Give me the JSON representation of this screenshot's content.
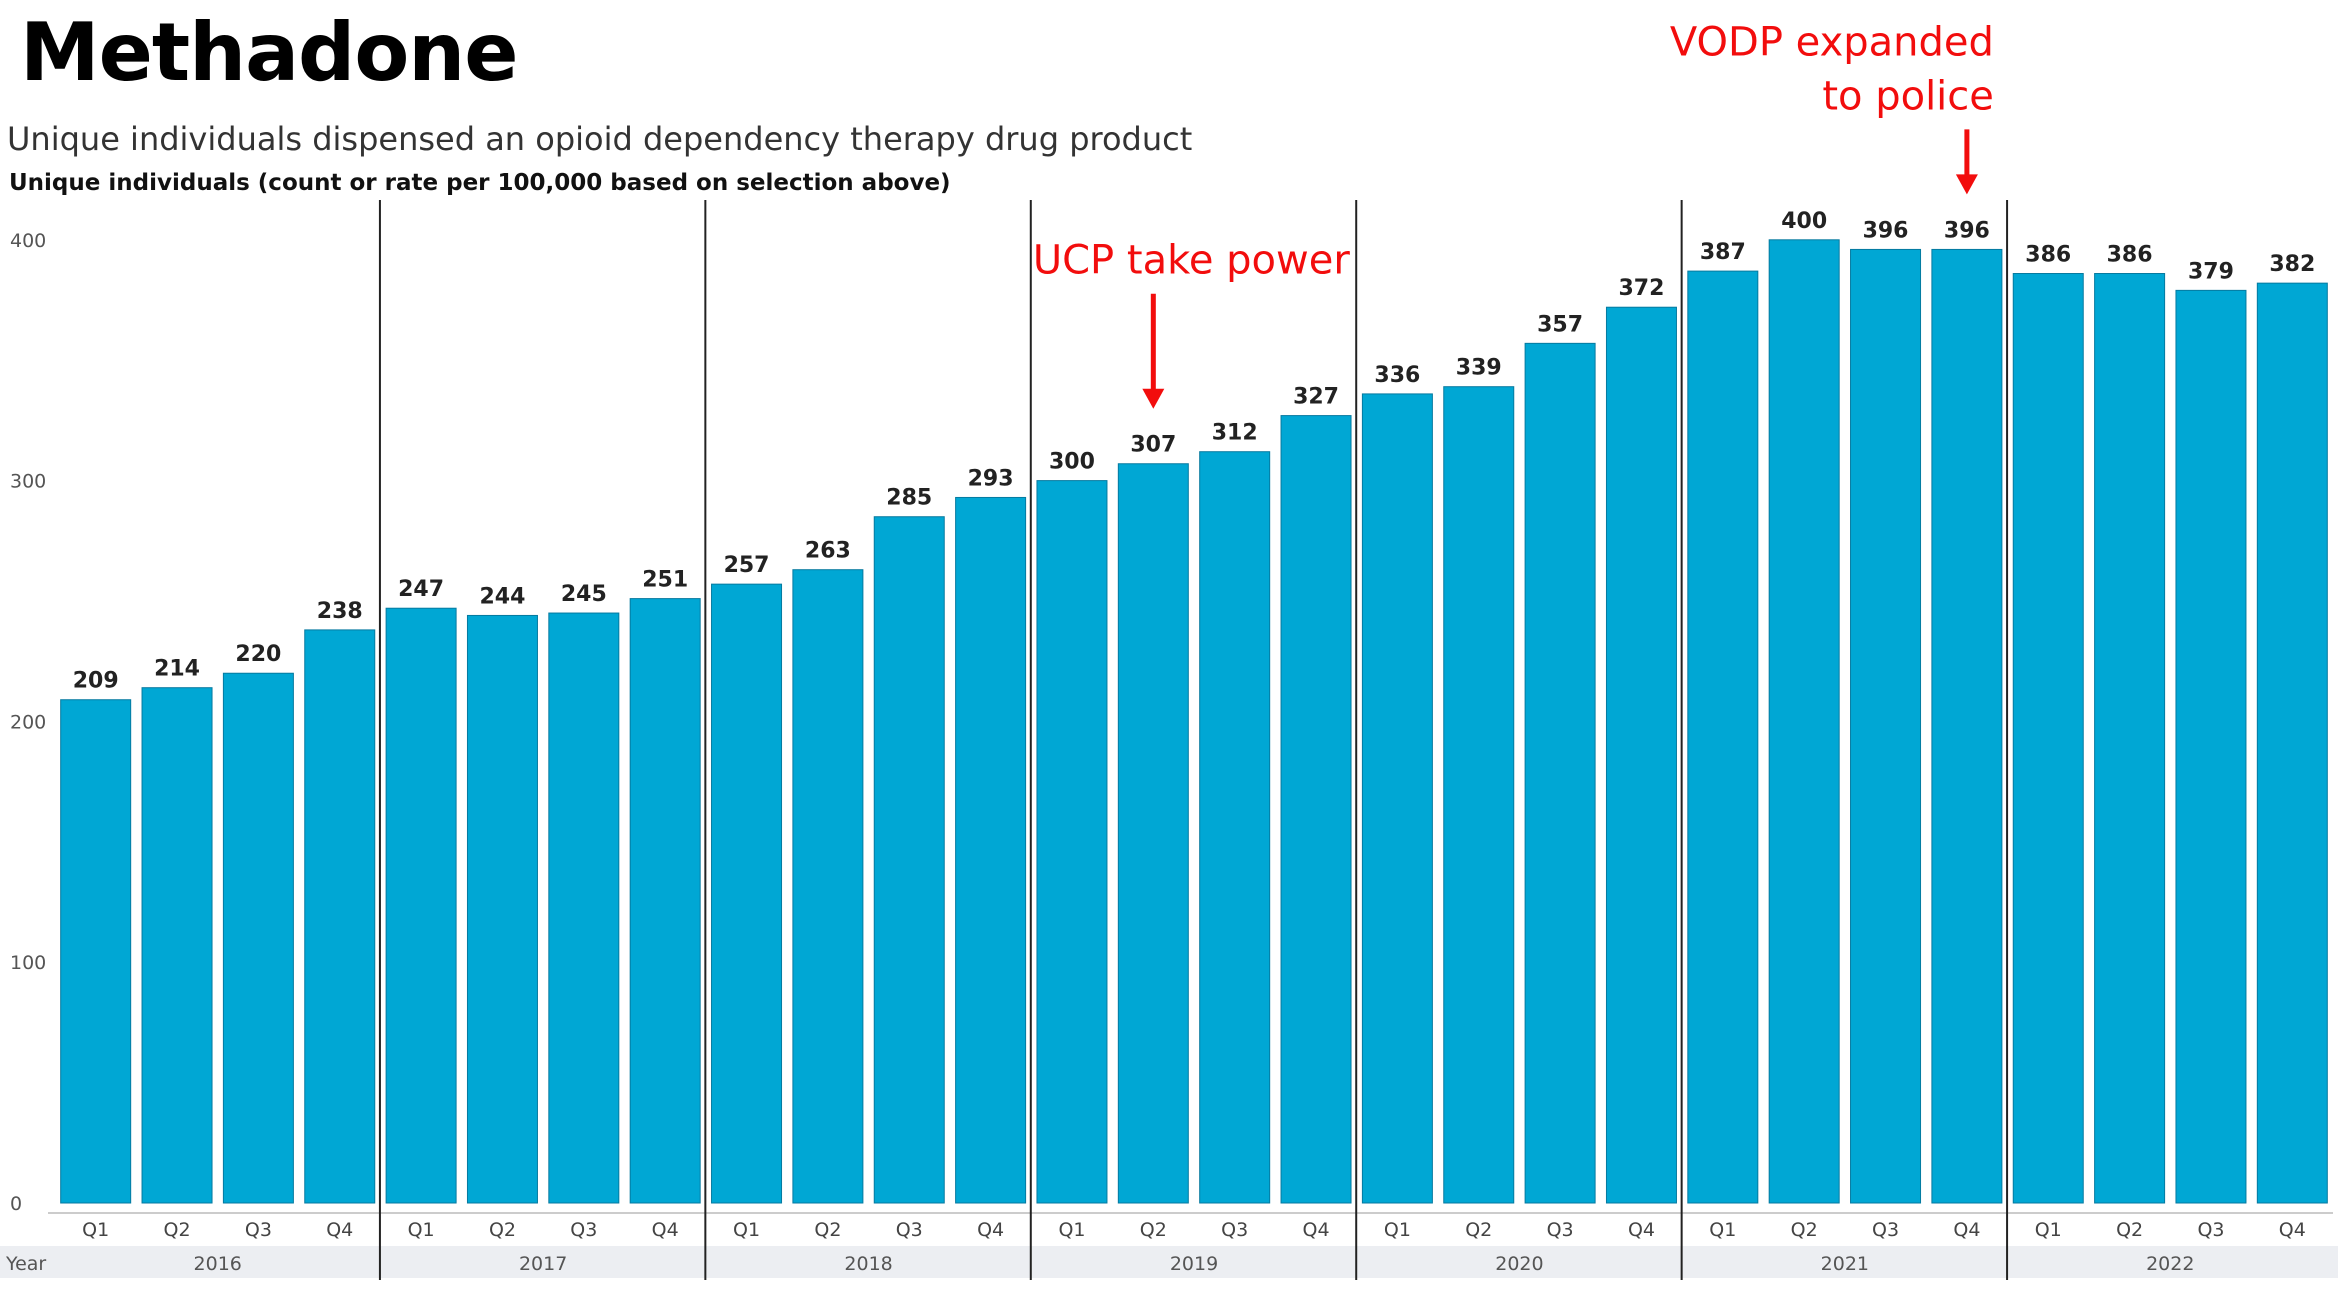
{
  "header": {
    "title": "Methadone",
    "subtitle": "Unique individuals dispensed an opioid dependency therapy drug product",
    "axis_title": "Unique individuals (count or rate per 100,000 based on selection above)"
  },
  "colors": {
    "bar": "#00a7d4",
    "annotation": "#f20d0d",
    "divider": "#222222",
    "footer_band": "#eceef2"
  },
  "annotations": [
    {
      "lines": [
        "UCP take power"
      ],
      "category": "2019 Q2"
    },
    {
      "lines": [
        "VODP expanded",
        "to police"
      ],
      "category": "2021 Q4"
    }
  ],
  "chart_data": {
    "type": "bar",
    "title": "Methadone",
    "xlabel": "Year",
    "ylabel": "Unique individuals (count or rate per 100,000 based on selection above)",
    "ylim": [
      0,
      420
    ],
    "yticks": [
      0,
      100,
      200,
      300,
      400
    ],
    "grid": false,
    "years": [
      "2016",
      "2017",
      "2018",
      "2019",
      "2020",
      "2021",
      "2022"
    ],
    "quarters": [
      "Q1",
      "Q2",
      "Q3",
      "Q4"
    ],
    "categories": [
      "2016 Q1",
      "2016 Q2",
      "2016 Q3",
      "2016 Q4",
      "2017 Q1",
      "2017 Q2",
      "2017 Q3",
      "2017 Q4",
      "2018 Q1",
      "2018 Q2",
      "2018 Q3",
      "2018 Q4",
      "2019 Q1",
      "2019 Q2",
      "2019 Q3",
      "2019 Q4",
      "2020 Q1",
      "2020 Q2",
      "2020 Q3",
      "2020 Q4",
      "2021 Q1",
      "2021 Q2",
      "2021 Q3",
      "2021 Q4",
      "2022 Q1",
      "2022 Q2",
      "2022 Q3",
      "2022 Q4"
    ],
    "values": [
      209,
      214,
      220,
      238,
      247,
      244,
      245,
      251,
      257,
      263,
      285,
      293,
      300,
      307,
      312,
      327,
      336,
      339,
      357,
      372,
      387,
      400,
      396,
      396,
      386,
      386,
      379,
      382
    ]
  }
}
